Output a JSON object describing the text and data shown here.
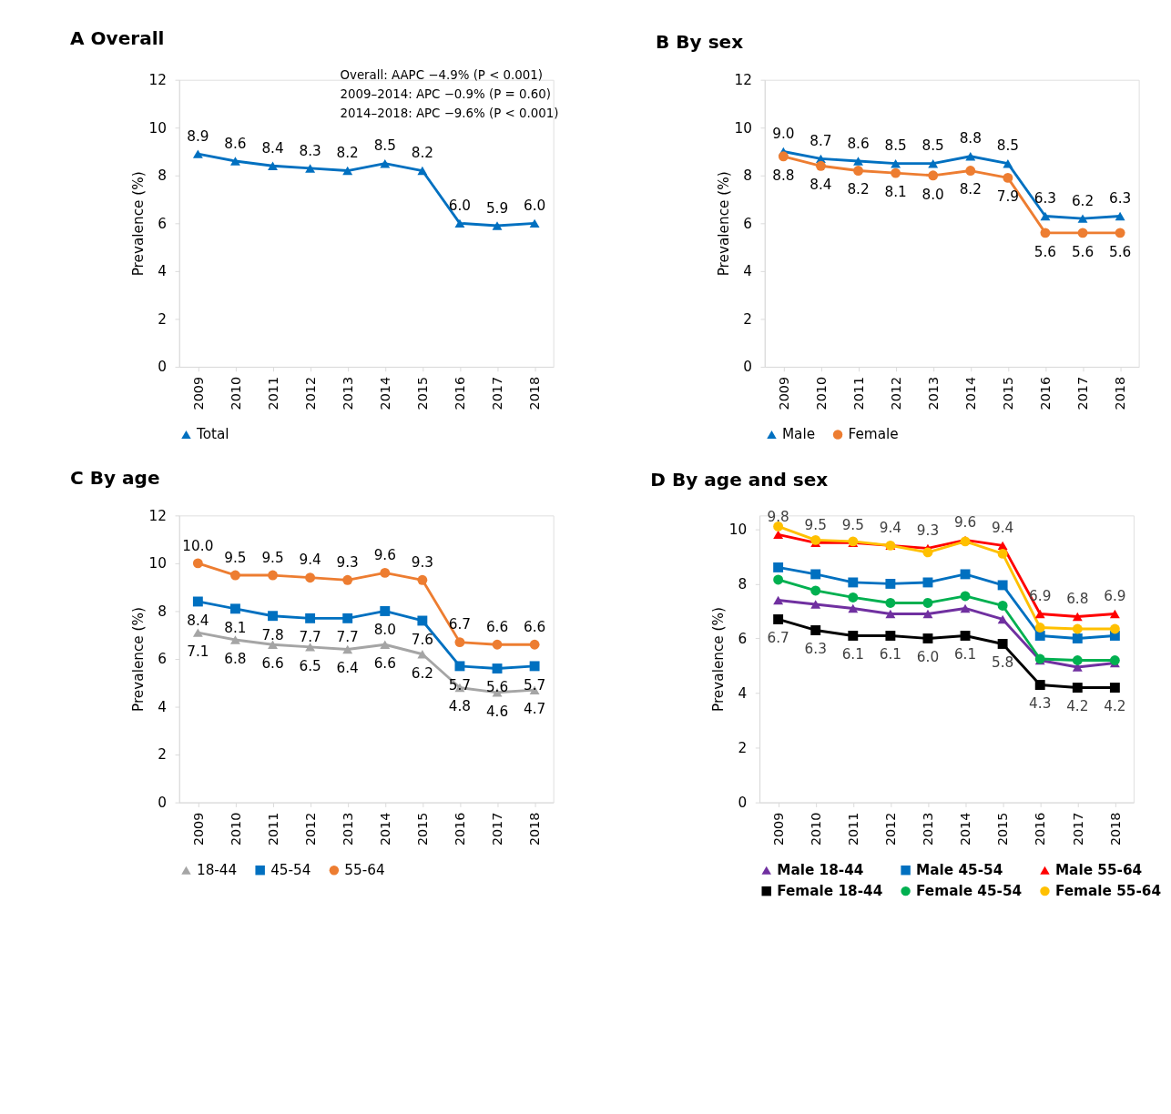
{
  "chart_data": [
    {
      "type": "line",
      "title": "A Overall",
      "ylabel": "Prevalence (%)",
      "categories": [
        "2009",
        "2010",
        "2011",
        "2012",
        "2013",
        "2014",
        "2015",
        "2016",
        "2017",
        "2018"
      ],
      "ylim": [
        0,
        12
      ],
      "yticks": [
        0,
        2,
        4,
        6,
        8,
        10,
        12
      ],
      "legend": "bottom",
      "annotations": [
        "Overall: AAPC −4.9% (P < 0.001)",
        "2009–2014: APC −0.9% (P = 0.60)",
        "2014–2018: APC −9.6% (P < 0.001)"
      ],
      "series": [
        {
          "name": "Total",
          "color": "#0070c0",
          "marker": "triangle",
          "values": [
            8.9,
            8.6,
            8.4,
            8.3,
            8.2,
            8.5,
            8.2,
            6.0,
            5.9,
            6.0
          ],
          "value_labels": [
            "8.9",
            "8.6",
            "8.4",
            "8.3",
            "8.2",
            "8.5",
            "8.2",
            "6.0",
            "5.9",
            "6.0"
          ]
        }
      ]
    },
    {
      "type": "line",
      "title": "B By sex",
      "ylabel": "Prevalence (%)",
      "categories": [
        "2009",
        "2010",
        "2011",
        "2012",
        "2013",
        "2014",
        "2015",
        "2016",
        "2017",
        "2018"
      ],
      "ylim": [
        0,
        12
      ],
      "yticks": [
        0,
        2,
        4,
        6,
        8,
        10,
        12
      ],
      "legend": "bottom",
      "series": [
        {
          "name": "Male",
          "color": "#0070c0",
          "marker": "triangle",
          "values": [
            9.0,
            8.7,
            8.6,
            8.5,
            8.5,
            8.8,
            8.5,
            6.3,
            6.2,
            6.3
          ],
          "value_labels": [
            "9.0",
            "8.7",
            "8.6",
            "8.5",
            "8.5",
            "8.8",
            "8.5",
            "6.3",
            "6.2",
            "6.3"
          ]
        },
        {
          "name": "Female",
          "color": "#ed7d31",
          "marker": "circle",
          "values": [
            8.8,
            8.4,
            8.2,
            8.1,
            8.0,
            8.2,
            7.9,
            5.6,
            5.6,
            5.6
          ],
          "value_labels": [
            "8.8",
            "8.4",
            "8.2",
            "8.1",
            "8.0",
            "8.2",
            "7.9",
            "5.6",
            "5.6",
            "5.6"
          ]
        }
      ]
    },
    {
      "type": "line",
      "title": "C By age",
      "ylabel": "Prevalence (%)",
      "categories": [
        "2009",
        "2010",
        "2011",
        "2012",
        "2013",
        "2014",
        "2015",
        "2016",
        "2017",
        "2018"
      ],
      "ylim": [
        0,
        12
      ],
      "yticks": [
        0,
        2,
        4,
        6,
        8,
        10,
        12
      ],
      "legend": "bottom",
      "series": [
        {
          "name": "18-44",
          "color": "#a5a5a5",
          "marker": "triangle",
          "values": [
            7.1,
            6.8,
            6.6,
            6.5,
            6.4,
            6.6,
            6.2,
            4.8,
            4.6,
            4.7
          ],
          "value_labels": [
            "7.1",
            "6.8",
            "6.6",
            "6.5",
            "6.4",
            "6.6",
            "6.2",
            "4.8",
            "4.6",
            "4.7"
          ]
        },
        {
          "name": "45-54",
          "color": "#0070c0",
          "marker": "square",
          "values": [
            8.4,
            8.1,
            7.8,
            7.7,
            7.7,
            8.0,
            7.6,
            5.7,
            5.6,
            5.7
          ],
          "value_labels": [
            "8.4",
            "8.1",
            "7.8",
            "7.7",
            "7.7",
            "8.0",
            "7.6",
            "5.7",
            "5.6",
            "5.7"
          ]
        },
        {
          "name": "55-64",
          "color": "#ed7d31",
          "marker": "circle",
          "values": [
            10.0,
            9.5,
            9.5,
            9.4,
            9.3,
            9.6,
            9.3,
            6.7,
            6.6,
            6.6
          ],
          "value_labels": [
            "10.0",
            "9.5",
            "9.5",
            "9.4",
            "9.3",
            "9.6",
            "9.3",
            "6.7",
            "6.6",
            "6.6"
          ]
        }
      ]
    },
    {
      "type": "line",
      "title": "D By age and sex",
      "ylabel": "Prevalence (%)",
      "categories": [
        "2009",
        "2010",
        "2011",
        "2012",
        "2013",
        "2014",
        "2015",
        "2016",
        "2017",
        "2018"
      ],
      "ylim": [
        0,
        10.5
      ],
      "yticks": [
        0,
        2,
        4,
        6,
        8,
        10
      ],
      "legend": "bottom",
      "series": [
        {
          "name": "Male 18-44",
          "color": "#7030a0",
          "marker": "triangle",
          "values": [
            7.4,
            7.25,
            7.1,
            6.9,
            6.9,
            7.1,
            6.7,
            5.2,
            4.95,
            5.1
          ]
        },
        {
          "name": "Male 45-54",
          "color": "#0070c0",
          "marker": "square",
          "values": [
            8.6,
            8.35,
            8.05,
            8.0,
            8.05,
            8.35,
            7.95,
            6.1,
            6.0,
            6.1
          ]
        },
        {
          "name": "Male 55-64",
          "color": "#ff0000",
          "marker": "triangle",
          "values": [
            9.8,
            9.5,
            9.5,
            9.4,
            9.3,
            9.6,
            9.4,
            6.9,
            6.8,
            6.9
          ],
          "value_labels": [
            "9.8",
            "9.5",
            "9.5",
            "9.4",
            "9.3",
            "9.6",
            "9.4",
            "6.9",
            "6.8",
            "6.9"
          ]
        },
        {
          "name": "Female 18-44",
          "color": "#000000",
          "marker": "square",
          "values": [
            6.7,
            6.3,
            6.1,
            6.1,
            6.0,
            6.1,
            5.8,
            4.3,
            4.2,
            4.2
          ],
          "value_labels": [
            "6.7",
            "6.3",
            "6.1",
            "6.1",
            "6.0",
            "6.1",
            "5.8",
            "4.3",
            "4.2",
            "4.2"
          ]
        },
        {
          "name": "Female 45-54",
          "color": "#00b050",
          "marker": "circle",
          "values": [
            8.15,
            7.75,
            7.5,
            7.3,
            7.3,
            7.55,
            7.2,
            5.25,
            5.2,
            5.2
          ]
        },
        {
          "name": "Female 55-64",
          "color": "#ffc000",
          "marker": "circle",
          "values": [
            10.1,
            9.6,
            9.55,
            9.4,
            9.15,
            9.55,
            9.1,
            6.4,
            6.35,
            6.35
          ]
        }
      ]
    }
  ]
}
